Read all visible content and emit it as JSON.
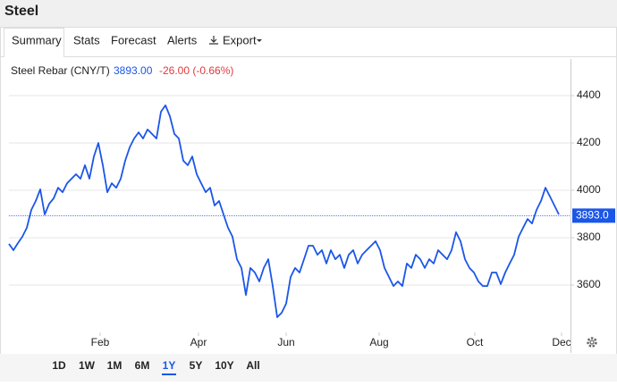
{
  "header": {
    "title": "Steel"
  },
  "tabs": [
    "Summary",
    "Stats",
    "Forecast",
    "Alerts",
    "Export"
  ],
  "ranges": [
    "1D",
    "1W",
    "1M",
    "6M",
    "1Y",
    "5Y",
    "10Y",
    "All"
  ],
  "chart_data": {
    "type": "line",
    "legend": {
      "name": "Steel Rebar (CNY/T)",
      "price": "3893.00",
      "change": "-26.00 (-0.66%)"
    },
    "series": [
      {
        "name": "Steel Rebar (CNY/T)",
        "color": "#1a56e8",
        "values": [
          3774,
          3747,
          3777,
          3804,
          3842,
          3917,
          3955,
          4004,
          3898,
          3943,
          3966,
          4011,
          3992,
          4030,
          4049,
          4068,
          4049,
          4106,
          4049,
          4143,
          4200,
          4106,
          3992,
          4030,
          4011,
          4049,
          4125,
          4181,
          4219,
          4245,
          4219,
          4257,
          4238,
          4219,
          4332,
          4359,
          4313,
          4238,
          4219,
          4125,
          4106,
          4143,
          4068,
          4030,
          3992,
          4011,
          3936,
          3955,
          3898,
          3842,
          3804,
          3709,
          3672,
          3558,
          3672,
          3653,
          3615,
          3672,
          3709,
          3596,
          3464,
          3483,
          3521,
          3634,
          3672,
          3653,
          3709,
          3766,
          3766,
          3728,
          3747,
          3691,
          3747,
          3709,
          3728,
          3672,
          3728,
          3747,
          3691,
          3728,
          3747,
          3766,
          3785,
          3747,
          3672,
          3634,
          3596,
          3615,
          3596,
          3691,
          3672,
          3728,
          3709,
          3672,
          3709,
          3691,
          3747,
          3728,
          3709,
          3747,
          3823,
          3785,
          3709,
          3672,
          3653,
          3615,
          3596,
          3596,
          3653,
          3653,
          3604,
          3653,
          3691,
          3728,
          3804,
          3842,
          3879,
          3860,
          3917,
          3955,
          4011,
          3974,
          3936,
          3898
        ]
      }
    ],
    "last_value": 3893,
    "last_label": "3893.0",
    "xlim": [
      0,
      125.6
    ],
    "xticks": [
      {
        "value": 20.4,
        "label": "Feb"
      },
      {
        "value": 42.4,
        "label": "Apr"
      },
      {
        "value": 62,
        "label": "Jun"
      },
      {
        "value": 82.8,
        "label": "Aug"
      },
      {
        "value": 104.2,
        "label": "Oct"
      },
      {
        "value": 123.6,
        "label": "Dec"
      }
    ],
    "ylim": [
      3400,
      4530
    ],
    "yticks": [
      3600,
      3800,
      4000,
      4200,
      4400
    ],
    "grid": true
  }
}
